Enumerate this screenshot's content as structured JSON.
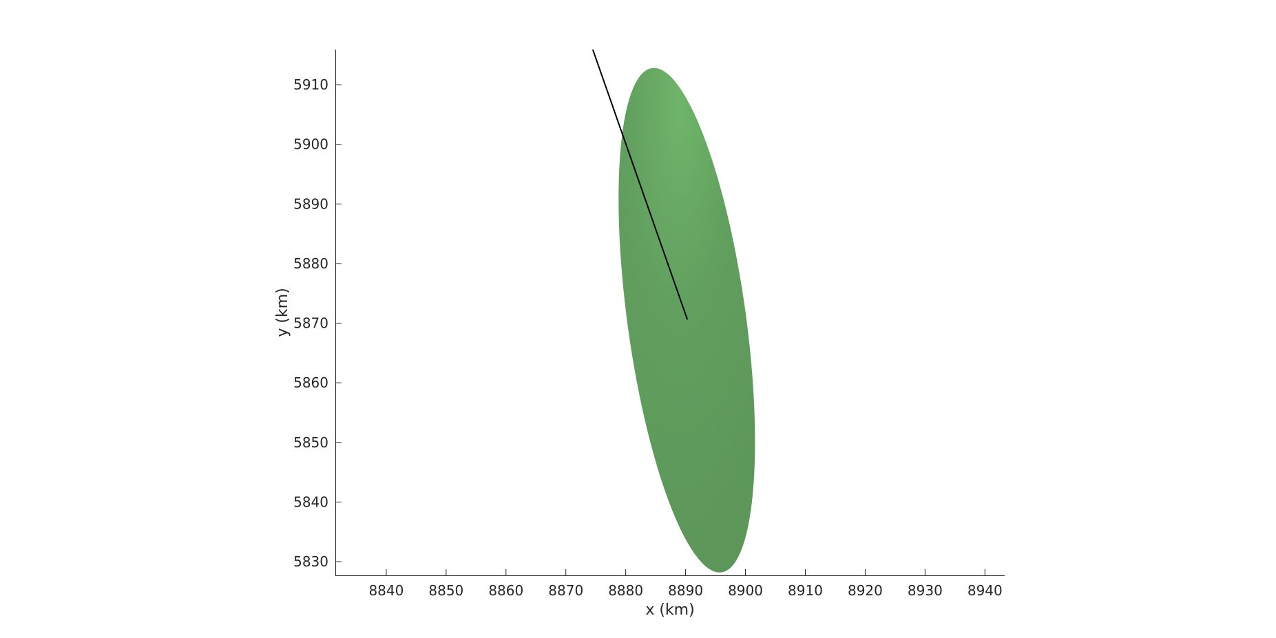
{
  "chart_data": {
    "type": "scatter",
    "title": "",
    "xlabel": "x (km)",
    "ylabel": "y (km)",
    "xlim": [
      8831.5,
      8943.3
    ],
    "ylim": [
      5827.7,
      5915.9
    ],
    "x_ticks": [
      8840,
      8850,
      8860,
      8870,
      8880,
      8890,
      8900,
      8910,
      8920,
      8930,
      8940
    ],
    "y_ticks": [
      5830,
      5840,
      5850,
      5860,
      5870,
      5880,
      5890,
      5900,
      5910
    ],
    "grid": false,
    "legend": "none",
    "colors": {
      "ellipse_fill": "#5e9a5c",
      "ellipse_highlight": "#6fb56a",
      "line": "#000000",
      "axis": "#262626"
    },
    "ellipse": {
      "center": [
        8890.2,
        5870.5
      ],
      "top_point": [
        8884.4,
        5912.8
      ],
      "bottom_point": [
        8896.0,
        5828.2
      ],
      "semi_minor": 9.9
    },
    "series": [
      {
        "type": "line",
        "x": [
          8874.5,
          8890.3
        ],
        "y": [
          5915.9,
          5870.6
        ]
      }
    ]
  }
}
